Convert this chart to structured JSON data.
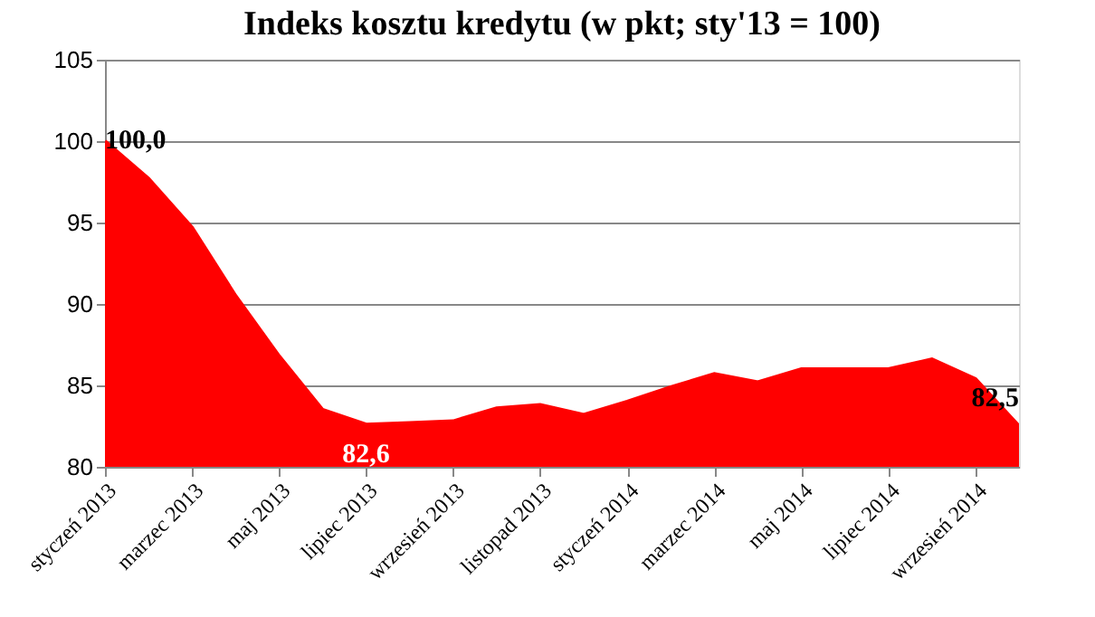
{
  "chart_data": {
    "type": "area",
    "title": "Indeks kosztu kredytu (w pkt; sty'13 = 100)",
    "categories": [
      "styczeń 2013",
      null,
      "marzec 2013",
      null,
      "maj 2013",
      null,
      "lipiec 2013",
      null,
      "wrzesień 2013",
      null,
      "listopad 2013",
      null,
      "styczeń 2014",
      null,
      "marzec 2014",
      null,
      "maj 2014",
      null,
      "lipiec 2014",
      null,
      "wrzesień 2014",
      null
    ],
    "values": [
      100.0,
      97.7,
      94.7,
      90.5,
      86.8,
      83.5,
      82.6,
      82.7,
      82.8,
      83.6,
      83.8,
      83.2,
      84.0,
      84.9,
      85.7,
      85.2,
      86.0,
      86.0,
      86.0,
      86.6,
      85.4,
      82.5
    ],
    "value_labels": [
      "100,0",
      null,
      null,
      null,
      null,
      null,
      "82,6",
      null,
      null,
      null,
      null,
      null,
      null,
      null,
      null,
      null,
      null,
      null,
      null,
      null,
      null,
      "82,5"
    ],
    "color": "#ff0000",
    "ylim": [
      80,
      105
    ],
    "yticks": [
      80,
      85,
      90,
      95,
      100,
      105
    ],
    "grid": "y"
  }
}
